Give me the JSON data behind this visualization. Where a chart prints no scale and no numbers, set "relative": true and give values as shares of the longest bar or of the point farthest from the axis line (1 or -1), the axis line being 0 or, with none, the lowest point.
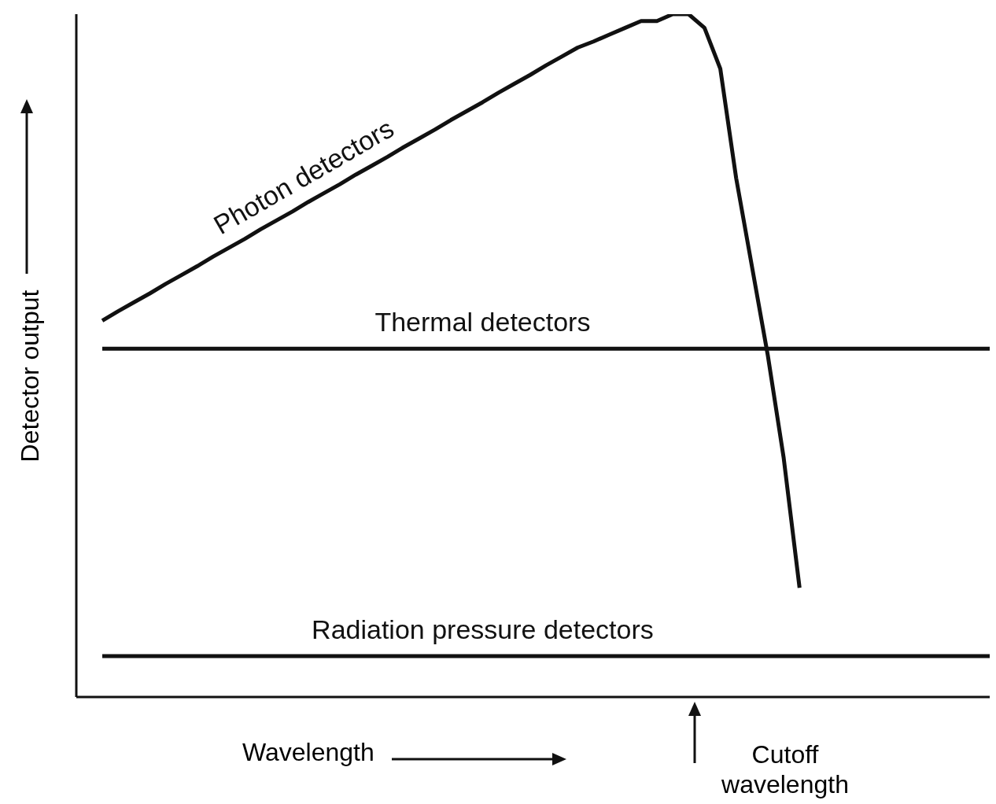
{
  "chart_data": {
    "type": "line",
    "relative": true,
    "xlabel": "Wavelength",
    "ylabel": "Detector output",
    "annotations": [
      "Cutoff wavelength"
    ],
    "grid": false,
    "legend": false,
    "marker": "none",
    "line_style": "solid",
    "categories": [
      null,
      null,
      null,
      null,
      null,
      null,
      null,
      null,
      null,
      null,
      null,
      null,
      null,
      null,
      null,
      null,
      null,
      null,
      null,
      null,
      null,
      null,
      null,
      null,
      null,
      null,
      null,
      null,
      null,
      null,
      null,
      null,
      null,
      null,
      null,
      null,
      null,
      null,
      null,
      null,
      null,
      null,
      null,
      null,
      null,
      null,
      null,
      null,
      null,
      null,
      null,
      null,
      null,
      null,
      null,
      null,
      null
    ],
    "series": [
      {
        "name": "Photon detectors",
        "color": "#111111",
        "values": [
          0.551,
          0.565,
          0.578,
          0.591,
          0.605,
          0.618,
          0.631,
          0.645,
          0.658,
          0.671,
          0.685,
          0.698,
          0.711,
          0.725,
          0.738,
          0.751,
          0.765,
          0.778,
          0.791,
          0.805,
          0.818,
          0.831,
          0.845,
          0.858,
          0.871,
          0.885,
          0.898,
          0.911,
          0.925,
          0.938,
          0.951,
          0.96,
          0.97,
          0.98,
          0.99,
          0.99,
          1,
          1,
          0.98,
          0.92,
          0.76,
          0.63,
          0.5,
          0.35,
          0.16,
          null,
          null,
          null,
          null,
          null,
          null,
          null,
          null,
          null,
          null,
          null,
          null
        ]
      },
      {
        "name": "Thermal detectors",
        "color": "#111111",
        "values": [
          0.51,
          0.51,
          0.51,
          0.51,
          0.51,
          0.51,
          0.51,
          0.51,
          0.51,
          0.51,
          0.51,
          0.51,
          0.51,
          0.51,
          0.51,
          0.51,
          0.51,
          0.51,
          0.51,
          0.51,
          0.51,
          0.51,
          0.51,
          0.51,
          0.51,
          0.51,
          0.51,
          0.51,
          0.51,
          0.51,
          0.51,
          0.51,
          0.51,
          0.51,
          0.51,
          0.51,
          0.51,
          0.51,
          0.51,
          0.51,
          0.51,
          0.51,
          0.51,
          0.51,
          0.51,
          0.51,
          0.51,
          0.51,
          0.51,
          0.51,
          0.51,
          0.51,
          0.51,
          0.51,
          0.51,
          0.51,
          0.51
        ]
      },
      {
        "name": "Radiation pressure detectors",
        "color": "#111111",
        "values": [
          0.06,
          0.06,
          0.06,
          0.06,
          0.06,
          0.06,
          0.06,
          0.06,
          0.06,
          0.06,
          0.06,
          0.06,
          0.06,
          0.06,
          0.06,
          0.06,
          0.06,
          0.06,
          0.06,
          0.06,
          0.06,
          0.06,
          0.06,
          0.06,
          0.06,
          0.06,
          0.06,
          0.06,
          0.06,
          0.06,
          0.06,
          0.06,
          0.06,
          0.06,
          0.06,
          0.06,
          0.06,
          0.06,
          0.06,
          0.06,
          0.06,
          0.06,
          0.06,
          0.06,
          0.06,
          0.06,
          0.06,
          0.06,
          0.06,
          0.06,
          0.06,
          0.06,
          0.06,
          0.06,
          0.06,
          0.06,
          0.06
        ]
      }
    ]
  }
}
